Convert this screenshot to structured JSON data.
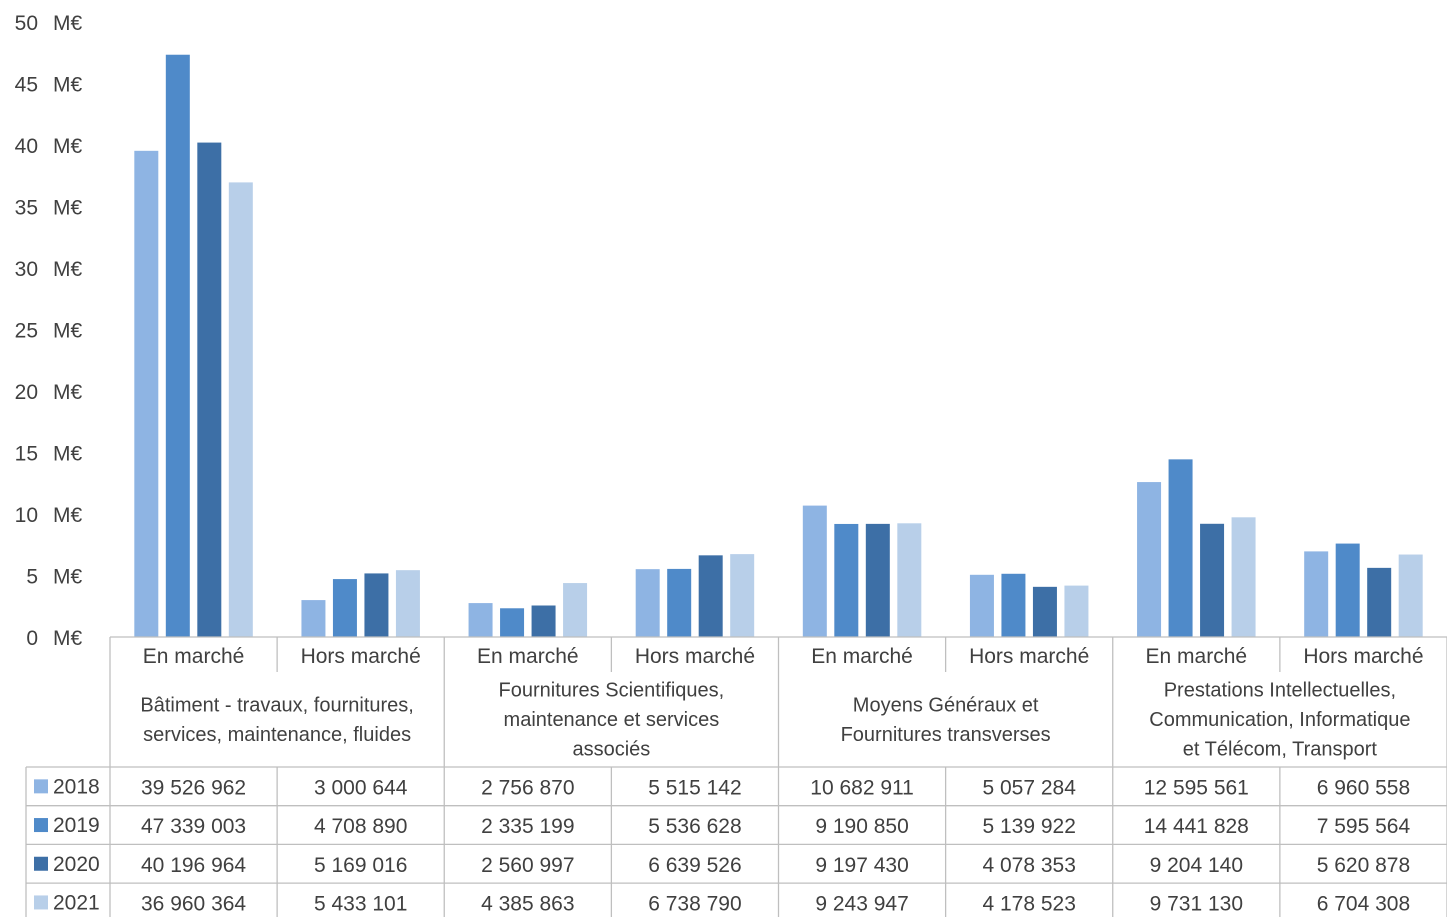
{
  "chart_data": {
    "type": "bar",
    "unit_suffix": "M€",
    "ylim": [
      0,
      50
    ],
    "yticks": [
      0,
      5,
      10,
      15,
      20,
      25,
      30,
      35,
      40,
      45,
      50
    ],
    "groups": [
      {
        "name": "Bâtiment - travaux, fournitures, services, maintenance, fluides",
        "lines": [
          "Bâtiment - travaux, fournitures,",
          "services, maintenance, fluides"
        ]
      },
      {
        "name": "Fournitures Scientifiques, maintenance et services associés",
        "lines": [
          "Fournitures Scientifiques,",
          "maintenance et services",
          "associés"
        ]
      },
      {
        "name": "Moyens Généraux et Fournitures transverses",
        "lines": [
          "Moyens Généraux et",
          "Fournitures transverses"
        ]
      },
      {
        "name": "Prestations Intellectuelles, Communication, Informatique et Télécom, Transport",
        "lines": [
          "Prestations Intellectuelles,",
          "Communication, Informatique",
          "et Télécom, Transport"
        ]
      }
    ],
    "subcategories": [
      "En marché",
      "Hors marché"
    ],
    "series": [
      {
        "name": "2018",
        "color": "#8eb4e3",
        "values": [
          39526962,
          3000644,
          2756870,
          5515142,
          10682911,
          5057284,
          12595561,
          6960558
        ],
        "labels": [
          "39 526 962",
          "3 000 644",
          "2 756 870",
          "5 515 142",
          "10 682 911",
          "5 057 284",
          "12 595 561",
          "6 960 558"
        ]
      },
      {
        "name": "2019",
        "color": "#4f8ac9",
        "values": [
          47339003,
          4708890,
          2335199,
          5536628,
          9190850,
          5139922,
          14441828,
          7595564
        ],
        "labels": [
          "47 339 003",
          "4 708 890",
          "2 335 199",
          "5 536 628",
          "9 190 850",
          "5 139 922",
          "14 441 828",
          "7 595 564"
        ]
      },
      {
        "name": "2020",
        "color": "#3d6fa6",
        "values": [
          40196964,
          5169016,
          2560997,
          6639526,
          9197430,
          4078353,
          9204140,
          5620878
        ],
        "labels": [
          "40 196 964",
          "5 169 016",
          "2 560 997",
          "6 639 526",
          "9 197 430",
          "4 078 353",
          "9 204 140",
          "5 620 878"
        ]
      },
      {
        "name": "2021",
        "color": "#b8cfe9",
        "values": [
          36960364,
          5433101,
          4385863,
          6738790,
          9243947,
          4178523,
          9731130,
          6704308
        ],
        "labels": [
          "36 960 364",
          "5 433 101",
          "4 385 863",
          "6 738 790",
          "9 243 947",
          "4 178 523",
          "9 731 130",
          "6 704 308"
        ]
      }
    ]
  }
}
